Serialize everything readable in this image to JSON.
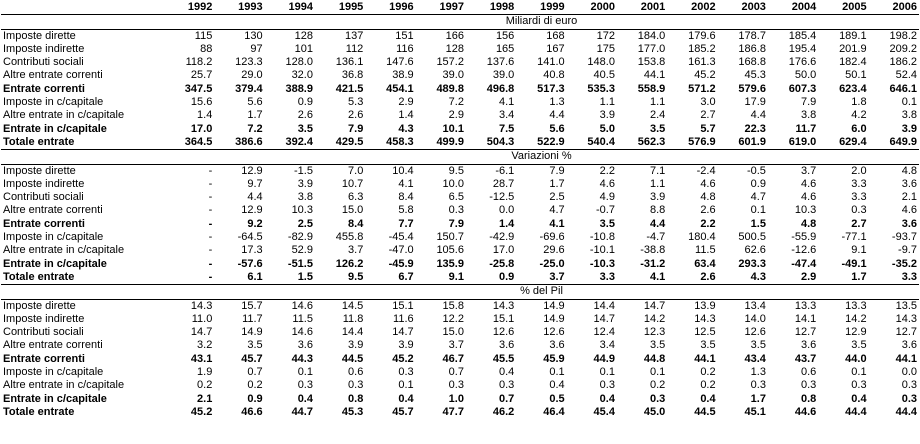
{
  "table": {
    "header": [
      "1992",
      "1993",
      "1994",
      "1995",
      "1996",
      "1997",
      "1998",
      "1999",
      "2000",
      "2001",
      "2002",
      "2003",
      "2004",
      "2005",
      "2006"
    ],
    "sections": [
      {
        "title": "Miliardi di euro",
        "rows": [
          {
            "label": "Imposte dirette",
            "values": [
              "115",
              "130",
              "128",
              "137",
              "151",
              "166",
              "156",
              "168",
              "172",
              "184.0",
              "179.6",
              "178.7",
              "185.4",
              "189.1",
              "198.2"
            ]
          },
          {
            "label": "Imposte indirette",
            "values": [
              "88",
              "97",
              "101",
              "112",
              "116",
              "128",
              "165",
              "167",
              "175",
              "177.0",
              "185.2",
              "186.8",
              "195.4",
              "201.9",
              "209.2"
            ]
          },
          {
            "label": "Contributi sociali",
            "values": [
              "118.2",
              "123.3",
              "128.0",
              "136.1",
              "147.6",
              "157.2",
              "137.6",
              "141.0",
              "148.0",
              "153.8",
              "161.3",
              "168.8",
              "176.6",
              "182.4",
              "186.2"
            ]
          },
          {
            "label": "Altre entrate correnti",
            "values": [
              "25.7",
              "29.0",
              "32.0",
              "36.8",
              "38.9",
              "39.0",
              "39.0",
              "40.8",
              "40.5",
              "44.1",
              "45.2",
              "45.3",
              "50.0",
              "50.1",
              "52.4"
            ]
          },
          {
            "label": "Entrate correnti",
            "values": [
              "347.5",
              "379.4",
              "388.9",
              "421.5",
              "454.1",
              "489.8",
              "496.8",
              "517.3",
              "535.3",
              "558.9",
              "571.2",
              "579.6",
              "607.3",
              "623.4",
              "646.1"
            ]
          },
          {
            "label": "Imposte in c/capitale",
            "values": [
              "15.6",
              "5.6",
              "0.9",
              "5.3",
              "2.9",
              "7.2",
              "4.1",
              "1.3",
              "1.1",
              "1.1",
              "3.0",
              "17.9",
              "7.9",
              "1.8",
              "0.1"
            ]
          },
          {
            "label": "Altre entrate in c/capitale",
            "values": [
              "1.4",
              "1.7",
              "2.6",
              "2.6",
              "1.4",
              "2.9",
              "3.4",
              "4.4",
              "3.9",
              "2.4",
              "2.7",
              "4.4",
              "3.8",
              "4.2",
              "3.8"
            ]
          },
          {
            "label": "Entrate in c/capitale",
            "values": [
              "17.0",
              "7.2",
              "3.5",
              "7.9",
              "4.3",
              "10.1",
              "7.5",
              "5.6",
              "5.0",
              "3.5",
              "5.7",
              "22.3",
              "11.7",
              "6.0",
              "3.9"
            ]
          },
          {
            "label": "Totale entrate",
            "values": [
              "364.5",
              "386.6",
              "392.4",
              "429.5",
              "458.3",
              "499.9",
              "504.3",
              "522.9",
              "540.4",
              "562.3",
              "576.9",
              "601.9",
              "619.0",
              "629.4",
              "649.9"
            ]
          }
        ]
      },
      {
        "title": "Variazioni %",
        "rows": [
          {
            "label": "Imposte dirette",
            "values": [
              "-",
              "12.9",
              "-1.5",
              "7.0",
              "10.4",
              "9.5",
              "-6.1",
              "7.9",
              "2.2",
              "7.1",
              "-2.4",
              "-0.5",
              "3.7",
              "2.0",
              "4.8"
            ]
          },
          {
            "label": "Imposte indirette",
            "values": [
              "-",
              "9.7",
              "3.9",
              "10.7",
              "4.1",
              "10.0",
              "28.7",
              "1.7",
              "4.6",
              "1.1",
              "4.6",
              "0.9",
              "4.6",
              "3.3",
              "3.6"
            ]
          },
          {
            "label": "Contributi sociali",
            "values": [
              "-",
              "4.4",
              "3.8",
              "6.3",
              "8.4",
              "6.5",
              "-12.5",
              "2.5",
              "4.9",
              "3.9",
              "4.8",
              "4.7",
              "4.6",
              "3.3",
              "2.1"
            ]
          },
          {
            "label": "Altre entrate correnti",
            "values": [
              "-",
              "12.9",
              "10.3",
              "15.0",
              "5.8",
              "0.3",
              "0.0",
              "4.7",
              "-0.7",
              "8.8",
              "2.6",
              "0.1",
              "10.3",
              "0.3",
              "4.6"
            ]
          },
          {
            "label": "Entrate correnti",
            "values": [
              "-",
              "9.2",
              "2.5",
              "8.4",
              "7.7",
              "7.9",
              "1.4",
              "4.1",
              "3.5",
              "4.4",
              "2.2",
              "1.5",
              "4.8",
              "2.7",
              "3.6"
            ]
          },
          {
            "label": "Imposte in c/capitale",
            "values": [
              "-",
              "-64.5",
              "-82.9",
              "455.8",
              "-45.4",
              "150.7",
              "-42.9",
              "-69.6",
              "-10.8",
              "-4.7",
              "180.4",
              "500.5",
              "-55.9",
              "-77.1",
              "-93.7"
            ]
          },
          {
            "label": "Altre entrate in c/capitale",
            "values": [
              "-",
              "17.3",
              "52.9",
              "3.7",
              "-47.0",
              "105.6",
              "17.0",
              "29.6",
              "-10.1",
              "-38.8",
              "11.5",
              "62.6",
              "-12.6",
              "9.1",
              "-9.7"
            ]
          },
          {
            "label": "Entrate in c/capitale",
            "values": [
              "-",
              "-57.6",
              "-51.5",
              "126.2",
              "-45.9",
              "135.9",
              "-25.8",
              "-25.0",
              "-10.3",
              "-31.2",
              "63.4",
              "293.3",
              "-47.4",
              "-49.1",
              "-35.2"
            ]
          },
          {
            "label": "Totale entrate",
            "values": [
              "-",
              "6.1",
              "1.5",
              "9.5",
              "6.7",
              "9.1",
              "0.9",
              "3.7",
              "3.3",
              "4.1",
              "2.6",
              "4.3",
              "2.9",
              "1.7",
              "3.3"
            ]
          }
        ]
      },
      {
        "title": "% del Pil",
        "rows": [
          {
            "label": "Imposte dirette",
            "values": [
              "14.3",
              "15.7",
              "14.6",
              "14.5",
              "15.1",
              "15.8",
              "14.3",
              "14.9",
              "14.4",
              "14.7",
              "13.9",
              "13.4",
              "13.3",
              "13.3",
              "13.5"
            ]
          },
          {
            "label": "Imposte indirette",
            "values": [
              "11.0",
              "11.7",
              "11.5",
              "11.8",
              "11.6",
              "12.2",
              "15.1",
              "14.9",
              "14.7",
              "14.2",
              "14.3",
              "14.0",
              "14.1",
              "14.2",
              "14.3"
            ]
          },
          {
            "label": "Contributi sociali",
            "values": [
              "14.7",
              "14.9",
              "14.6",
              "14.4",
              "14.7",
              "15.0",
              "12.6",
              "12.6",
              "12.4",
              "12.3",
              "12.5",
              "12.6",
              "12.7",
              "12.9",
              "12.7"
            ]
          },
          {
            "label": "Altre entrate correnti",
            "values": [
              "3.2",
              "3.5",
              "3.6",
              "3.9",
              "3.9",
              "3.7",
              "3.6",
              "3.6",
              "3.4",
              "3.5",
              "3.5",
              "3.5",
              "3.6",
              "3.5",
              "3.6"
            ]
          },
          {
            "label": "Entrate correnti",
            "values": [
              "43.1",
              "45.7",
              "44.3",
              "44.5",
              "45.2",
              "46.7",
              "45.5",
              "45.9",
              "44.9",
              "44.8",
              "44.1",
              "43.4",
              "43.7",
              "44.0",
              "44.1"
            ]
          },
          {
            "label": "Imposte in c/capitale",
            "values": [
              "1.9",
              "0.7",
              "0.1",
              "0.6",
              "0.3",
              "0.7",
              "0.4",
              "0.1",
              "0.1",
              "0.1",
              "0.2",
              "1.3",
              "0.6",
              "0.1",
              "0.0"
            ]
          },
          {
            "label": "Altre entrate in c/capitale",
            "values": [
              "0.2",
              "0.2",
              "0.3",
              "0.3",
              "0.1",
              "0.3",
              "0.3",
              "0.4",
              "0.3",
              "0.2",
              "0.2",
              "0.3",
              "0.3",
              "0.3",
              "0.3"
            ]
          },
          {
            "label": "Entrate in c/capitale",
            "values": [
              "2.1",
              "0.9",
              "0.4",
              "0.8",
              "0.4",
              "1.0",
              "0.7",
              "0.5",
              "0.4",
              "0.3",
              "0.4",
              "1.7",
              "0.8",
              "0.4",
              "0.3"
            ]
          },
          {
            "label": "Totale entrate",
            "values": [
              "45.2",
              "46.6",
              "44.7",
              "45.3",
              "45.7",
              "47.7",
              "46.2",
              "46.4",
              "45.4",
              "45.0",
              "44.5",
              "45.1",
              "44.6",
              "44.4",
              "44.4"
            ]
          }
        ]
      }
    ]
  }
}
